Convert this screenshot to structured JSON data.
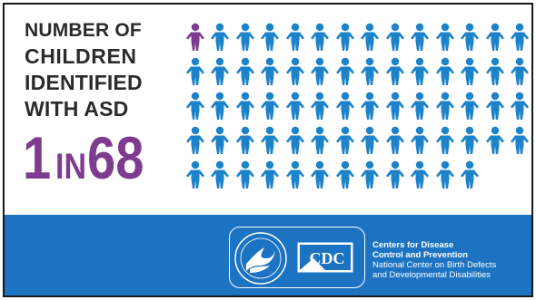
{
  "headline": {
    "line1": "NUMBER OF",
    "line2": "CHILDREN",
    "line3": "IDENTIFIED",
    "line4": "WITH ASD"
  },
  "ratio": {
    "part1": "1",
    "part2": "IN",
    "part3": "68"
  },
  "pictogram": {
    "highlighted_count": 1,
    "total_count": 68,
    "rows": [
      14,
      14,
      14,
      14,
      12
    ],
    "highlight_color": "#7d3c8f",
    "base_color": "#1c82c9"
  },
  "footer": {
    "band_color": "#1c73c2",
    "seal_icon": "hhs-seal-icon",
    "logo_text": "CDC",
    "org_line1": "Centers for Disease",
    "org_line2": "Control and Prevention",
    "center_line1": "National Center on Birth Defects",
    "center_line2": "and Developmental Disabilities"
  }
}
